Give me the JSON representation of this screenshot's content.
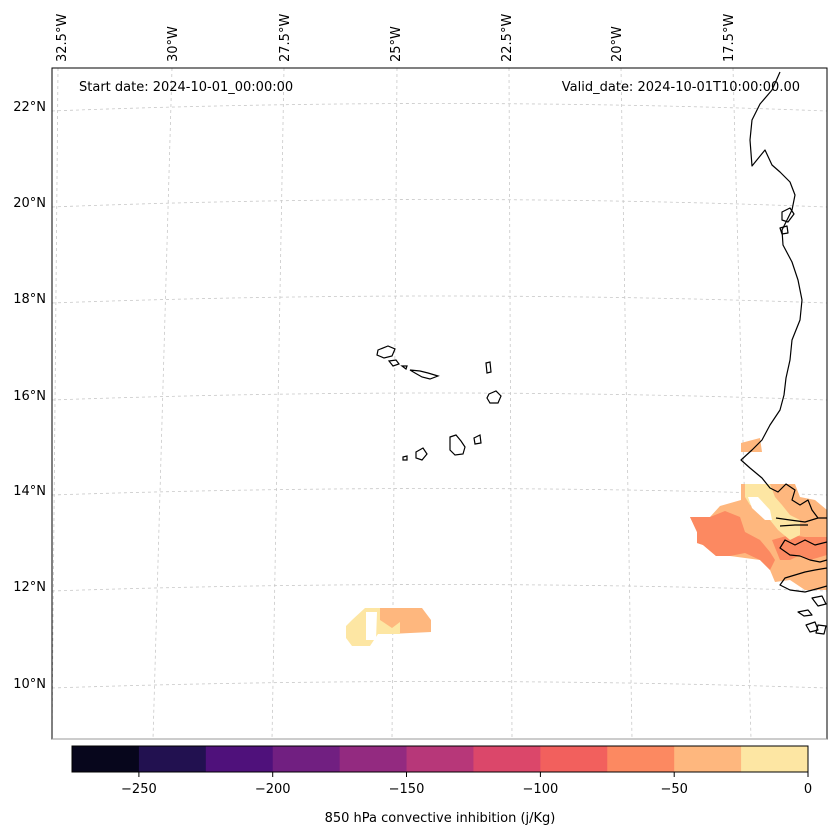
{
  "header": {
    "start_date": "Start date: 2024-10-01_00:00:00",
    "valid_date": "Valid_date: 2024-10-01T10:00:00.00"
  },
  "map": {
    "lon_labels": [
      "32.5°W",
      "30°W",
      "27.5°W",
      "25°W",
      "22.5°W",
      "20°W",
      "17.5°W"
    ],
    "lat_labels": [
      "22°N",
      "20°N",
      "18°N",
      "16°N",
      "14°N",
      "12°N",
      "10°N"
    ]
  },
  "colorbar": {
    "label": "850 hPa convective inhibition (j/Kg)",
    "ticks": [
      "−250",
      "−200",
      "−150",
      "−100",
      "−50",
      "0"
    ],
    "colors": [
      "#07061c",
      "#221150",
      "#4f117b",
      "#711f81",
      "#932a80",
      "#b73779",
      "#db476a",
      "#f2605d",
      "#fc8961",
      "#feb77e",
      "#fde6a3"
    ]
  },
  "legend_colors": {
    "light": "#fde6a3",
    "medium": "#feb77e",
    "orange": "#fc8961",
    "red": "#f2605d"
  }
}
